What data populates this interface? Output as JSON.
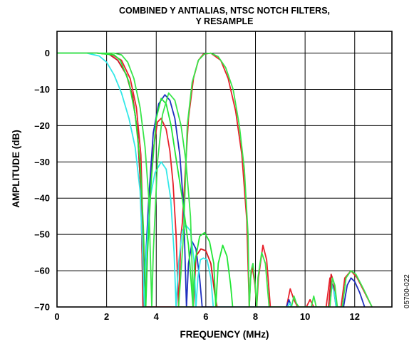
{
  "chart_data": {
    "type": "line",
    "title_lines": [
      "COMBINED Y ANTIALIAS, NTSC NOTCH FILTERS,",
      "Y RESAMPLE"
    ],
    "xlabel": "FREQUENCY (MHz)",
    "ylabel": "AMPLITUDE (dB)",
    "xlim": [
      0,
      13.5
    ],
    "ylim": [
      -70,
      6
    ],
    "x_ticks": [
      0,
      2,
      4,
      6,
      8,
      10,
      12
    ],
    "y_ticks": [
      0,
      -10,
      -20,
      -30,
      -40,
      -50,
      -60,
      -70
    ],
    "x_tick_labels": [
      "0",
      "2",
      "4",
      "6",
      "8",
      "10",
      "12"
    ],
    "y_tick_labels": [
      "0",
      "–10",
      "–20",
      "–30",
      "–40",
      "–50",
      "–60",
      "–70"
    ],
    "grid": true,
    "figure_id": "05700-022",
    "series": [
      {
        "color": "#e8212b",
        "points": [
          [
            0,
            0
          ],
          [
            1.6,
            0
          ],
          [
            2.2,
            -0.3
          ],
          [
            2.6,
            -2
          ],
          [
            2.95,
            -7
          ],
          [
            3.2,
            -15
          ],
          [
            3.38,
            -28
          ],
          [
            3.48,
            -52
          ],
          [
            3.55,
            -70
          ],
          [
            3.6,
            -62
          ],
          [
            3.7,
            -45
          ],
          [
            3.85,
            -28
          ],
          [
            4.05,
            -19
          ],
          [
            4.2,
            -18
          ],
          [
            4.4,
            -21
          ],
          [
            4.55,
            -27
          ],
          [
            4.68,
            -36
          ],
          [
            4.8,
            -50
          ],
          [
            4.9,
            -70
          ],
          [
            4.95,
            -60
          ],
          [
            5.0,
            -50
          ],
          [
            5.05,
            -47
          ],
          [
            5.15,
            -35
          ],
          [
            5.3,
            -18
          ],
          [
            5.5,
            -7
          ],
          [
            5.7,
            -2
          ],
          [
            5.9,
            -0.3
          ],
          [
            6.2,
            0
          ],
          [
            6.6,
            -2
          ],
          [
            6.9,
            -7
          ],
          [
            7.2,
            -16
          ],
          [
            7.45,
            -28
          ],
          [
            7.65,
            -46
          ],
          [
            7.75,
            -70
          ],
          [
            7.8,
            -62
          ],
          [
            7.88,
            -59
          ],
          [
            7.98,
            -64
          ],
          [
            8.05,
            -70
          ],
          [
            8.12,
            -62
          ],
          [
            8.3,
            -53
          ],
          [
            8.45,
            -57
          ],
          [
            8.6,
            -70
          ],
          [
            9.25,
            -70
          ],
          [
            9.4,
            -65
          ],
          [
            9.55,
            -68
          ],
          [
            9.7,
            -70
          ],
          [
            10.05,
            -70
          ],
          [
            10.2,
            -68
          ],
          [
            10.35,
            -70
          ],
          [
            10.85,
            -70
          ],
          [
            11.0,
            -62
          ],
          [
            11.15,
            -65
          ],
          [
            11.3,
            -70
          ],
          [
            11.45,
            -70
          ],
          [
            11.6,
            -62
          ],
          [
            11.85,
            -60
          ],
          [
            12.1,
            -62
          ],
          [
            12.4,
            -66
          ],
          [
            12.7,
            -70
          ]
        ]
      },
      {
        "color": "#1f2fbf",
        "points": [
          [
            0,
            0
          ],
          [
            1.6,
            0
          ],
          [
            2.1,
            -0.3
          ],
          [
            2.45,
            -2
          ],
          [
            2.8,
            -6
          ],
          [
            3.05,
            -12
          ],
          [
            3.25,
            -22
          ],
          [
            3.38,
            -38
          ],
          [
            3.47,
            -70
          ],
          [
            3.55,
            -60
          ],
          [
            3.7,
            -40
          ],
          [
            3.88,
            -22
          ],
          [
            4.1,
            -14
          ],
          [
            4.35,
            -11.5
          ],
          [
            4.55,
            -13
          ],
          [
            4.75,
            -18
          ],
          [
            4.95,
            -28
          ],
          [
            5.1,
            -42
          ],
          [
            5.22,
            -70
          ],
          [
            5.3,
            -58
          ],
          [
            5.45,
            -52
          ],
          [
            5.6,
            -54
          ],
          [
            5.75,
            -62
          ],
          [
            5.85,
            -70
          ],
          [
            9.25,
            -70
          ],
          [
            9.35,
            -68
          ],
          [
            9.45,
            -70
          ],
          [
            10.95,
            -70
          ],
          [
            11.05,
            -63
          ],
          [
            11.15,
            -65
          ],
          [
            11.25,
            -70
          ],
          [
            11.55,
            -70
          ],
          [
            11.7,
            -64
          ],
          [
            11.85,
            -62
          ],
          [
            12.0,
            -63
          ],
          [
            12.2,
            -66
          ],
          [
            12.4,
            -70
          ]
        ]
      },
      {
        "color": "#d8171e",
        "points": [
          [
            0,
            0
          ],
          [
            1.6,
            0
          ],
          [
            2.1,
            -0.3
          ],
          [
            2.45,
            -2
          ],
          [
            2.8,
            -6
          ],
          [
            3.05,
            -12
          ],
          [
            3.25,
            -22
          ],
          [
            3.38,
            -38
          ],
          [
            3.47,
            -70
          ],
          [
            5.5,
            -70
          ],
          [
            5.6,
            -56
          ],
          [
            5.8,
            -54
          ],
          [
            6.0,
            -54.5
          ],
          [
            6.2,
            -58
          ],
          [
            6.35,
            -66
          ],
          [
            6.45,
            -70
          ],
          [
            10.95,
            -70
          ],
          [
            11.05,
            -61
          ],
          [
            11.15,
            -63
          ],
          [
            11.25,
            -70
          ]
        ]
      },
      {
        "color": "#33e8e8",
        "points": [
          [
            0,
            0
          ],
          [
            1.2,
            0
          ],
          [
            1.7,
            -0.8
          ],
          [
            2.0,
            -2.5
          ],
          [
            2.3,
            -6
          ],
          [
            2.6,
            -11
          ],
          [
            2.9,
            -18
          ],
          [
            3.15,
            -26
          ],
          [
            3.35,
            -38
          ],
          [
            3.45,
            -55
          ],
          [
            3.52,
            -70
          ],
          [
            3.6,
            -55
          ],
          [
            3.75,
            -40
          ],
          [
            3.95,
            -33
          ],
          [
            4.2,
            -30
          ],
          [
            4.4,
            -32
          ],
          [
            4.58,
            -40
          ],
          [
            4.72,
            -55
          ],
          [
            4.8,
            -70
          ],
          [
            4.9,
            -58
          ],
          [
            5.05,
            -49
          ],
          [
            5.2,
            -47.5
          ],
          [
            5.38,
            -49
          ],
          [
            5.52,
            -57
          ],
          [
            5.6,
            -70
          ],
          [
            5.68,
            -62
          ],
          [
            5.78,
            -57
          ],
          [
            5.9,
            -56.5
          ],
          [
            6.05,
            -57
          ],
          [
            6.2,
            -62
          ],
          [
            6.3,
            -70
          ],
          [
            9.3,
            -70
          ],
          [
            9.38,
            -69
          ],
          [
            9.48,
            -70
          ],
          [
            11.0,
            -70
          ],
          [
            11.08,
            -64
          ],
          [
            11.18,
            -66
          ],
          [
            11.25,
            -70
          ]
        ]
      },
      {
        "color": "#22e636",
        "points": [
          [
            0,
            0
          ],
          [
            1.6,
            0
          ],
          [
            2.3,
            -0.5
          ],
          [
            2.55,
            -2
          ],
          [
            2.9,
            -8
          ],
          [
            3.15,
            -17
          ],
          [
            3.35,
            -30
          ],
          [
            3.48,
            -48
          ],
          [
            3.58,
            -70
          ],
          [
            3.65,
            -55
          ],
          [
            3.8,
            -35
          ],
          [
            4.0,
            -18
          ],
          [
            4.2,
            -12.5
          ],
          [
            4.4,
            -14
          ],
          [
            4.6,
            -20
          ],
          [
            4.82,
            -30
          ],
          [
            5.05,
            -40
          ],
          [
            5.3,
            -53
          ],
          [
            5.48,
            -70
          ],
          [
            5.55,
            -58
          ],
          [
            5.75,
            -50.5
          ],
          [
            5.95,
            -49.5
          ],
          [
            6.15,
            -52
          ],
          [
            6.32,
            -58
          ],
          [
            6.4,
            -70
          ],
          [
            6.5,
            -58
          ],
          [
            6.68,
            -53
          ],
          [
            6.85,
            -56
          ],
          [
            7.0,
            -64
          ],
          [
            7.08,
            -70
          ]
        ]
      },
      {
        "color": "#39e64a",
        "points": [
          [
            0,
            0
          ],
          [
            2.3,
            0
          ],
          [
            2.6,
            -0.5
          ],
          [
            2.85,
            -2.5
          ],
          [
            3.1,
            -7
          ],
          [
            3.35,
            -15
          ],
          [
            3.55,
            -26
          ],
          [
            3.7,
            -40
          ],
          [
            3.82,
            -70
          ],
          [
            3.88,
            -55
          ],
          [
            4.05,
            -30
          ],
          [
            4.25,
            -17
          ],
          [
            4.5,
            -11
          ],
          [
            4.75,
            -13
          ],
          [
            5.0,
            -20
          ],
          [
            5.2,
            -30
          ],
          [
            5.38,
            -45
          ],
          [
            5.5,
            -70
          ],
          [
            4.9,
            -70
          ],
          [
            5.0,
            -60
          ],
          [
            5.1,
            -50
          ],
          [
            5.25,
            -20
          ],
          [
            5.45,
            -8
          ],
          [
            5.7,
            -2
          ],
          [
            5.95,
            -0.2
          ],
          [
            6.2,
            0
          ],
          [
            6.5,
            -1
          ],
          [
            6.8,
            -4
          ],
          [
            7.1,
            -10
          ],
          [
            7.35,
            -20
          ],
          [
            7.55,
            -32
          ],
          [
            7.7,
            -50
          ],
          [
            7.75,
            -70
          ],
          [
            7.82,
            -60
          ],
          [
            7.9,
            -58
          ],
          [
            7.98,
            -63
          ],
          [
            8.05,
            -70
          ],
          [
            8.1,
            -62
          ],
          [
            8.25,
            -55
          ],
          [
            8.4,
            -58
          ],
          [
            8.55,
            -70
          ],
          [
            9.45,
            -70
          ],
          [
            9.55,
            -67
          ],
          [
            9.65,
            -69
          ],
          [
            9.75,
            -70
          ],
          [
            10.25,
            -70
          ],
          [
            10.35,
            -67
          ],
          [
            10.45,
            -70
          ],
          [
            11.0,
            -70
          ],
          [
            11.1,
            -62
          ],
          [
            11.2,
            -64
          ],
          [
            11.3,
            -70
          ],
          [
            11.5,
            -70
          ],
          [
            11.65,
            -62
          ],
          [
            11.85,
            -60
          ],
          [
            12.05,
            -61
          ],
          [
            12.35,
            -65
          ],
          [
            12.7,
            -70
          ]
        ]
      }
    ]
  }
}
